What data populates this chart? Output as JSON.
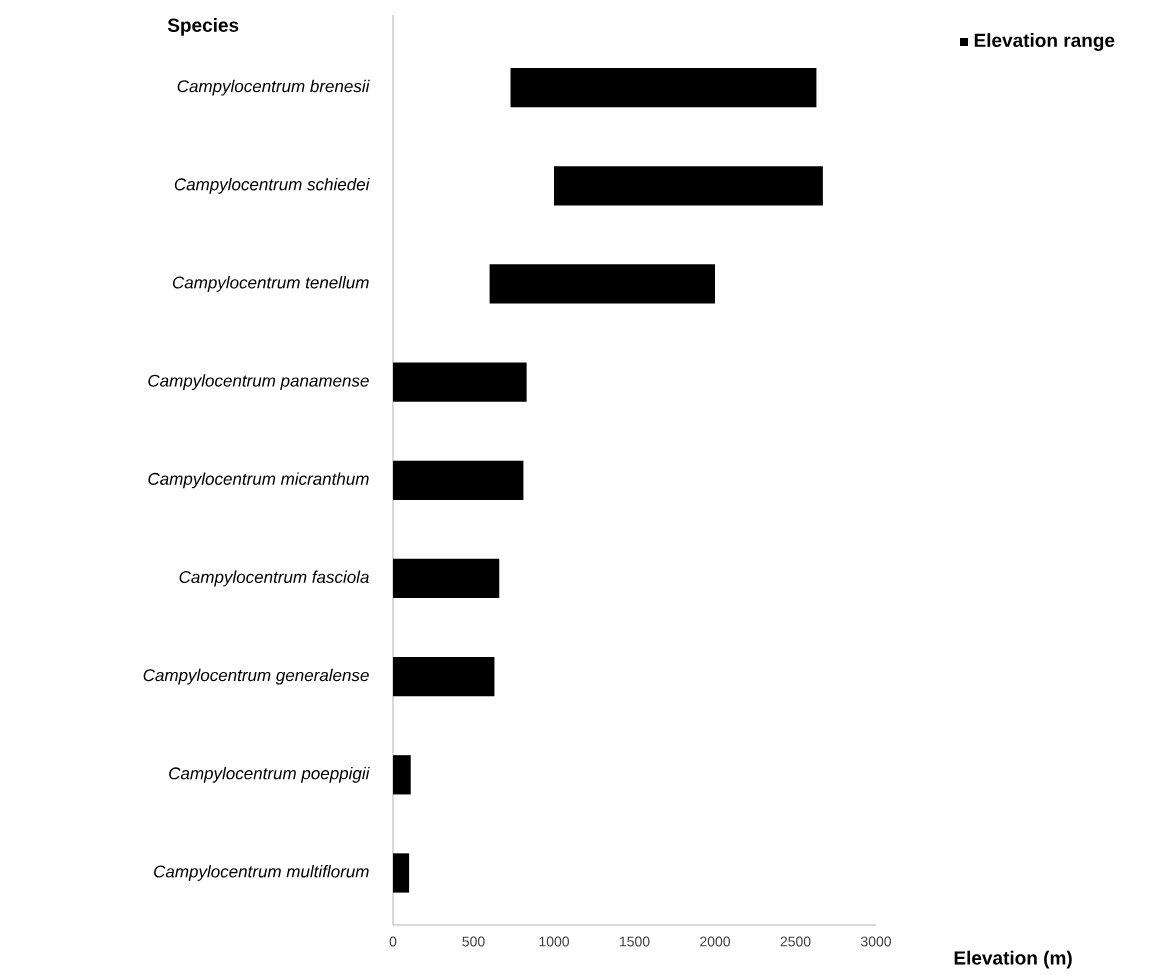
{
  "chart_data": {
    "type": "bar",
    "orientation": "horizontal",
    "xlabel": "Elevation (m)",
    "ylabel": "Species",
    "categories": [
      "Campylocentrum brenesii",
      "Campylocentrum schiedei",
      "Campylocentrum tenellum",
      "Campylocentrum panamense",
      "Campylocentrum micranthum",
      "Campylocentrum fasciola",
      "Campylocentrum generalense",
      "Campylocentrum poeppigii",
      "Campylocentrum multiflorum"
    ],
    "series": [
      {
        "name": "Elevation range",
        "color": "#000000",
        "values": [
          1900,
          1670,
          1400,
          830,
          810,
          660,
          630,
          110,
          100
        ],
        "base": [
          730,
          1000,
          600,
          0,
          0,
          0,
          0,
          0,
          0
        ]
      }
    ],
    "xlim": [
      0,
      3000
    ],
    "xticks": [
      0,
      500,
      1000,
      1500,
      2000,
      2500,
      3000
    ],
    "grid": false,
    "legend": "top right"
  }
}
